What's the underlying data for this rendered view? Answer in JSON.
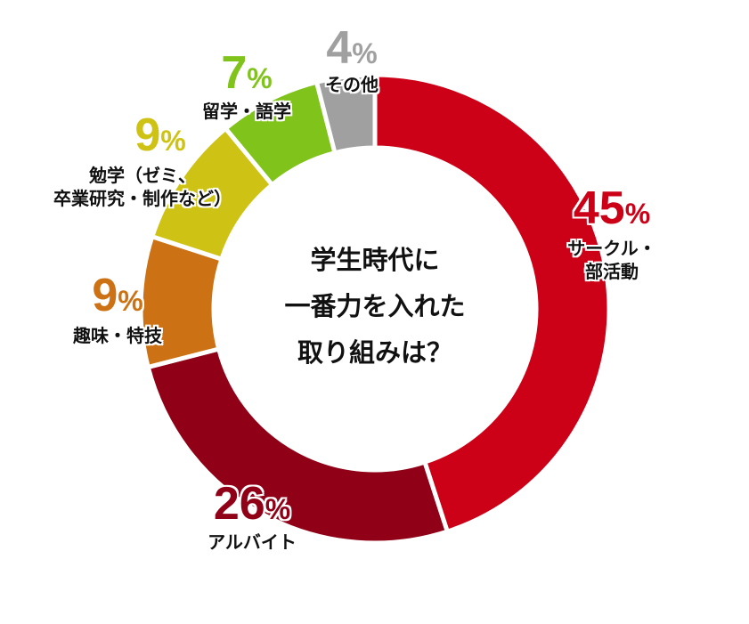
{
  "chart_data": {
    "type": "pie",
    "subtype": "donut",
    "title": "学生時代に一番力を入れた取り組みは？",
    "categories": [
      "サークル・部活動",
      "アルバイト",
      "趣味・特技",
      "勉学（ゼミ、卒業研究・制作など）",
      "留学・語学",
      "その他"
    ],
    "values": [
      45,
      26,
      9,
      9,
      7,
      4
    ],
    "unit": "%",
    "colors": [
      "#cc0016",
      "#900016",
      "#cc7214",
      "#cec314",
      "#80c31a",
      "#a0a0a0"
    ],
    "start_angle": "12 o'clock",
    "direction": "clockwise",
    "legend": "none (labels placed next to slices)"
  },
  "center": {
    "lines": [
      "学生時代に",
      "一番力を入れた",
      "取り組みは？"
    ]
  },
  "labels": [
    {
      "pct": "45",
      "sign": "%",
      "name_lines": [
        "サークル・",
        "部活動"
      ],
      "color": "#cc0016"
    },
    {
      "pct": "26",
      "sign": "%",
      "name_lines": [
        "アルバイト"
      ],
      "color": "#900016"
    },
    {
      "pct": "9",
      "sign": "%",
      "name_lines": [
        "趣味・特技"
      ],
      "color": "#cc7214"
    },
    {
      "pct": "9",
      "sign": "%",
      "name_lines": [
        "勉学（ゼミ、",
        "卒業研究・制作など）"
      ],
      "color": "#cec314"
    },
    {
      "pct": "7",
      "sign": "%",
      "name_lines": [
        "留学・語学"
      ],
      "color": "#80c31a"
    },
    {
      "pct": "4",
      "sign": "%",
      "name_lines": [
        "その他"
      ],
      "color": "#a0a0a0"
    }
  ]
}
